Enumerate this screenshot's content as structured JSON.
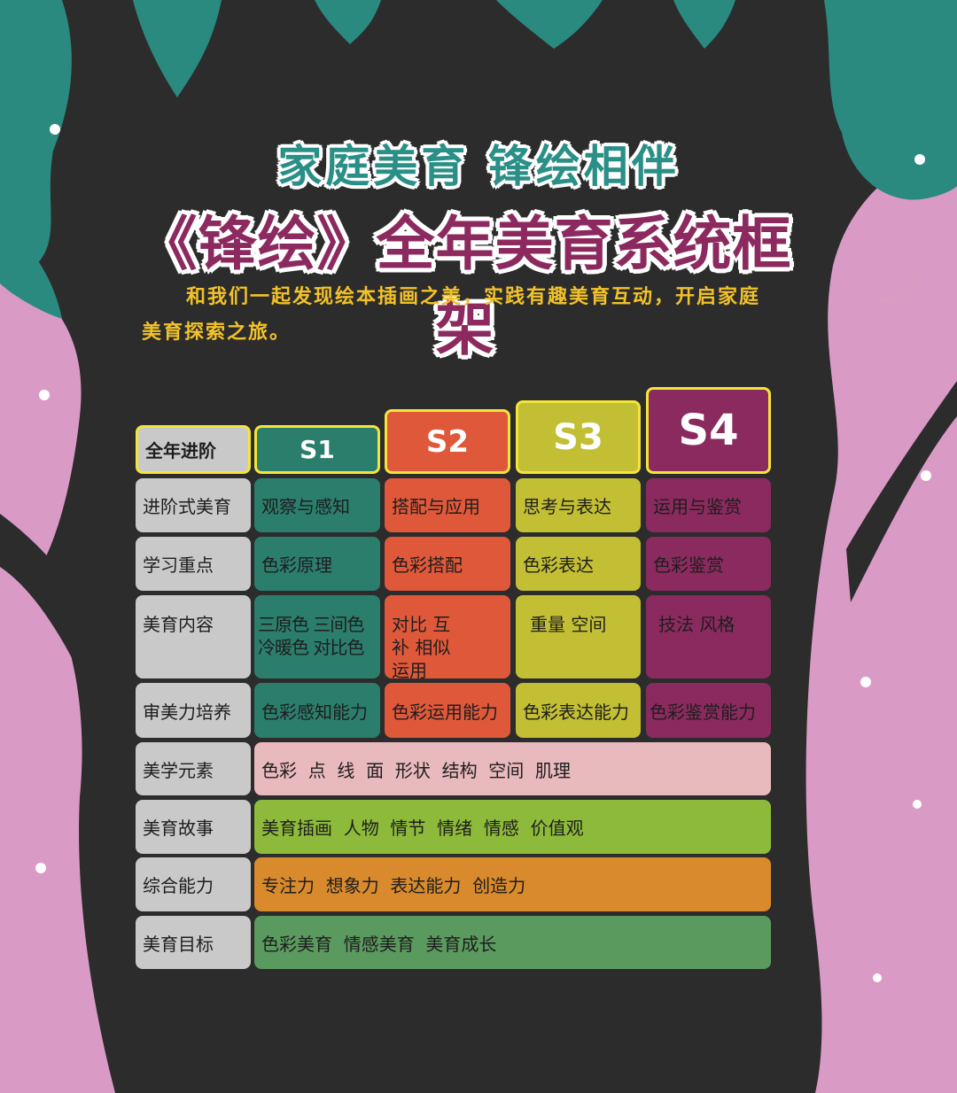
{
  "title_line1": "家庭美育  锋绘相伴",
  "title_line2": "《锋绘》全年美育系统框架",
  "intro": "和我们一起发现绘本插画之美，实践有趣美育互动，开启家庭美育探索之旅。",
  "colors": {
    "background": "#2c2c2c",
    "tree": "#d99bc6",
    "leaf": "#2a8a80",
    "moon": "#f2c81e",
    "s1": "#2b7d6c",
    "s2": "#e0583a",
    "s3": "#c3bf34",
    "s4": "#8a2a5f",
    "label": "#c9c9c9"
  },
  "table": {
    "header": {
      "label": "全年进阶",
      "stages": [
        "S1",
        "S2",
        "S3",
        "S4"
      ]
    },
    "rows": [
      {
        "label": "进阶式美育",
        "cells": [
          "观察与感知",
          "搭配与应用",
          "思考与表达",
          "运用与鉴赏"
        ]
      },
      {
        "label": "学习重点",
        "cells": [
          "色彩原理",
          "色彩搭配",
          "色彩表达",
          "色彩鉴赏"
        ]
      },
      {
        "label": "美育内容",
        "cells": [
          "三原色 三间色 冷暖色 对比色",
          "对比 互补 相似 运用",
          "重量 空间",
          "技法 风格"
        ]
      },
      {
        "label": "审美力培养",
        "cells": [
          "色彩感知能力",
          "色彩运用能力",
          "色彩表达能力",
          "色彩鉴赏能力"
        ]
      }
    ],
    "wide_rows": [
      {
        "label": "美学元素",
        "value": "色彩  点  线  面  形状  结构  空间  肌理",
        "color": "#e8b9bd"
      },
      {
        "label": "美育故事",
        "value": "美育插画  人物  情节  情绪  情感  价值观",
        "color": "#8dba3a"
      },
      {
        "label": "综合能力",
        "value": "专注力  想象力  表达能力  创造力",
        "color": "#d98a2c"
      },
      {
        "label": "美育目标",
        "value": "色彩美育  情感美育  美育成长",
        "color": "#5b9a5e"
      }
    ]
  }
}
